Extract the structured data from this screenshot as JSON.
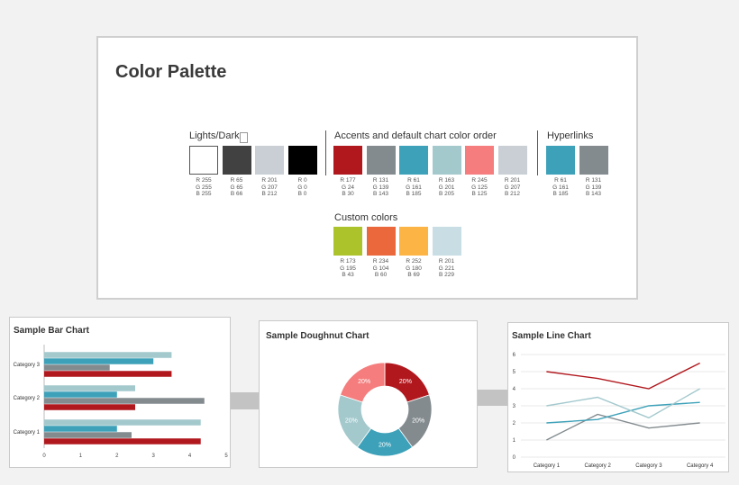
{
  "palette": {
    "title": "Color Palette",
    "groups": {
      "lights": {
        "label": "Lights/Darks",
        "swatches": [
          {
            "hex": "#ffffff",
            "r": "R 255",
            "g": "G 255",
            "b": "B 255"
          },
          {
            "hex": "#414142",
            "r": "R 65",
            "g": "G 65",
            "b": "B 66"
          },
          {
            "hex": "#c9cfd4",
            "r": "R 201",
            "g": "G 207",
            "b": "B 212"
          },
          {
            "hex": "#000000",
            "r": "R 0",
            "g": "G 0",
            "b": "B 0"
          }
        ]
      },
      "accents": {
        "label": "Accents and default chart color order",
        "swatches": [
          {
            "hex": "#b1181e",
            "r": "R 177",
            "g": "G 24",
            "b": "B 30"
          },
          {
            "hex": "#838b8f",
            "r": "R 131",
            "g": "G 139",
            "b": "B 143"
          },
          {
            "hex": "#3da1b9",
            "r": "R 61",
            "g": "G 161",
            "b": "B 185"
          },
          {
            "hex": "#a3c9cd",
            "r": "R 163",
            "g": "G 201",
            "b": "B 205"
          },
          {
            "hex": "#f57d7d",
            "r": "R 245",
            "g": "G 125",
            "b": "B 125"
          },
          {
            "hex": "#c9cfd4",
            "r": "R 201",
            "g": "G 207",
            "b": "B 212"
          }
        ]
      },
      "hyperlinks": {
        "label": "Hyperlinks",
        "swatches": [
          {
            "hex": "#3da1b9",
            "r": "R 61",
            "g": "G 161",
            "b": "B 185"
          },
          {
            "hex": "#838b8f",
            "r": "R 131",
            "g": "G 139",
            "b": "B 143"
          }
        ]
      },
      "custom": {
        "label": "Custom colors",
        "swatches": [
          {
            "hex": "#adc32b",
            "r": "R 173",
            "g": "G 195",
            "b": "B 43"
          },
          {
            "hex": "#ea683c",
            "r": "R 234",
            "g": "G 104",
            "b": "B 60"
          },
          {
            "hex": "#fcb445",
            "r": "R 252",
            "g": "G 180",
            "b": "B 69"
          },
          {
            "hex": "#c9dde5",
            "r": "R 201",
            "g": "G 221",
            "b": "B 229"
          }
        ]
      }
    }
  },
  "chart_data": [
    {
      "type": "bar",
      "title": "Sample Bar Chart",
      "orientation": "horizontal",
      "categories": [
        "Category 1",
        "Category 2",
        "Category 3"
      ],
      "series": [
        {
          "color": "#b1181e",
          "values": [
            4.3,
            2.5,
            3.5
          ]
        },
        {
          "color": "#838b8f",
          "values": [
            2.4,
            4.4,
            1.8
          ]
        },
        {
          "color": "#3da1b9",
          "values": [
            2.0,
            2.0,
            3.0
          ]
        },
        {
          "color": "#a3c9cd",
          "values": [
            4.3,
            2.5,
            3.5
          ]
        }
      ],
      "xlim": [
        0,
        5
      ],
      "xticks": [
        "0",
        "1",
        "2",
        "3",
        "4",
        "5"
      ]
    },
    {
      "type": "pie",
      "variant": "doughnut",
      "title": "Sample Doughnut Chart",
      "slices": [
        {
          "value": 20,
          "label": "20%",
          "color": "#b1181e"
        },
        {
          "value": 20,
          "label": "20%",
          "color": "#838b8f"
        },
        {
          "value": 20,
          "label": "20%",
          "color": "#3da1b9"
        },
        {
          "value": 20,
          "label": "20%",
          "color": "#a3c9cd"
        },
        {
          "value": 20,
          "label": "20%",
          "color": "#f57d7d"
        }
      ]
    },
    {
      "type": "line",
      "title": "Sample Line Chart",
      "categories": [
        "Category 1",
        "Category 2",
        "Category 3",
        "Category 4"
      ],
      "series": [
        {
          "color": "#b1181e",
          "values": [
            5,
            4.6,
            4,
            5.5
          ]
        },
        {
          "color": "#838b8f",
          "values": [
            1,
            2.5,
            1.7,
            2
          ]
        },
        {
          "color": "#3da1b9",
          "values": [
            2,
            2.2,
            3,
            3.2
          ]
        },
        {
          "color": "#a3c9cd",
          "values": [
            3,
            3.5,
            2.3,
            4
          ]
        }
      ],
      "ylim": [
        0,
        6
      ],
      "yticks": [
        "0",
        "1",
        "2",
        "3",
        "4",
        "5",
        "6"
      ]
    }
  ]
}
